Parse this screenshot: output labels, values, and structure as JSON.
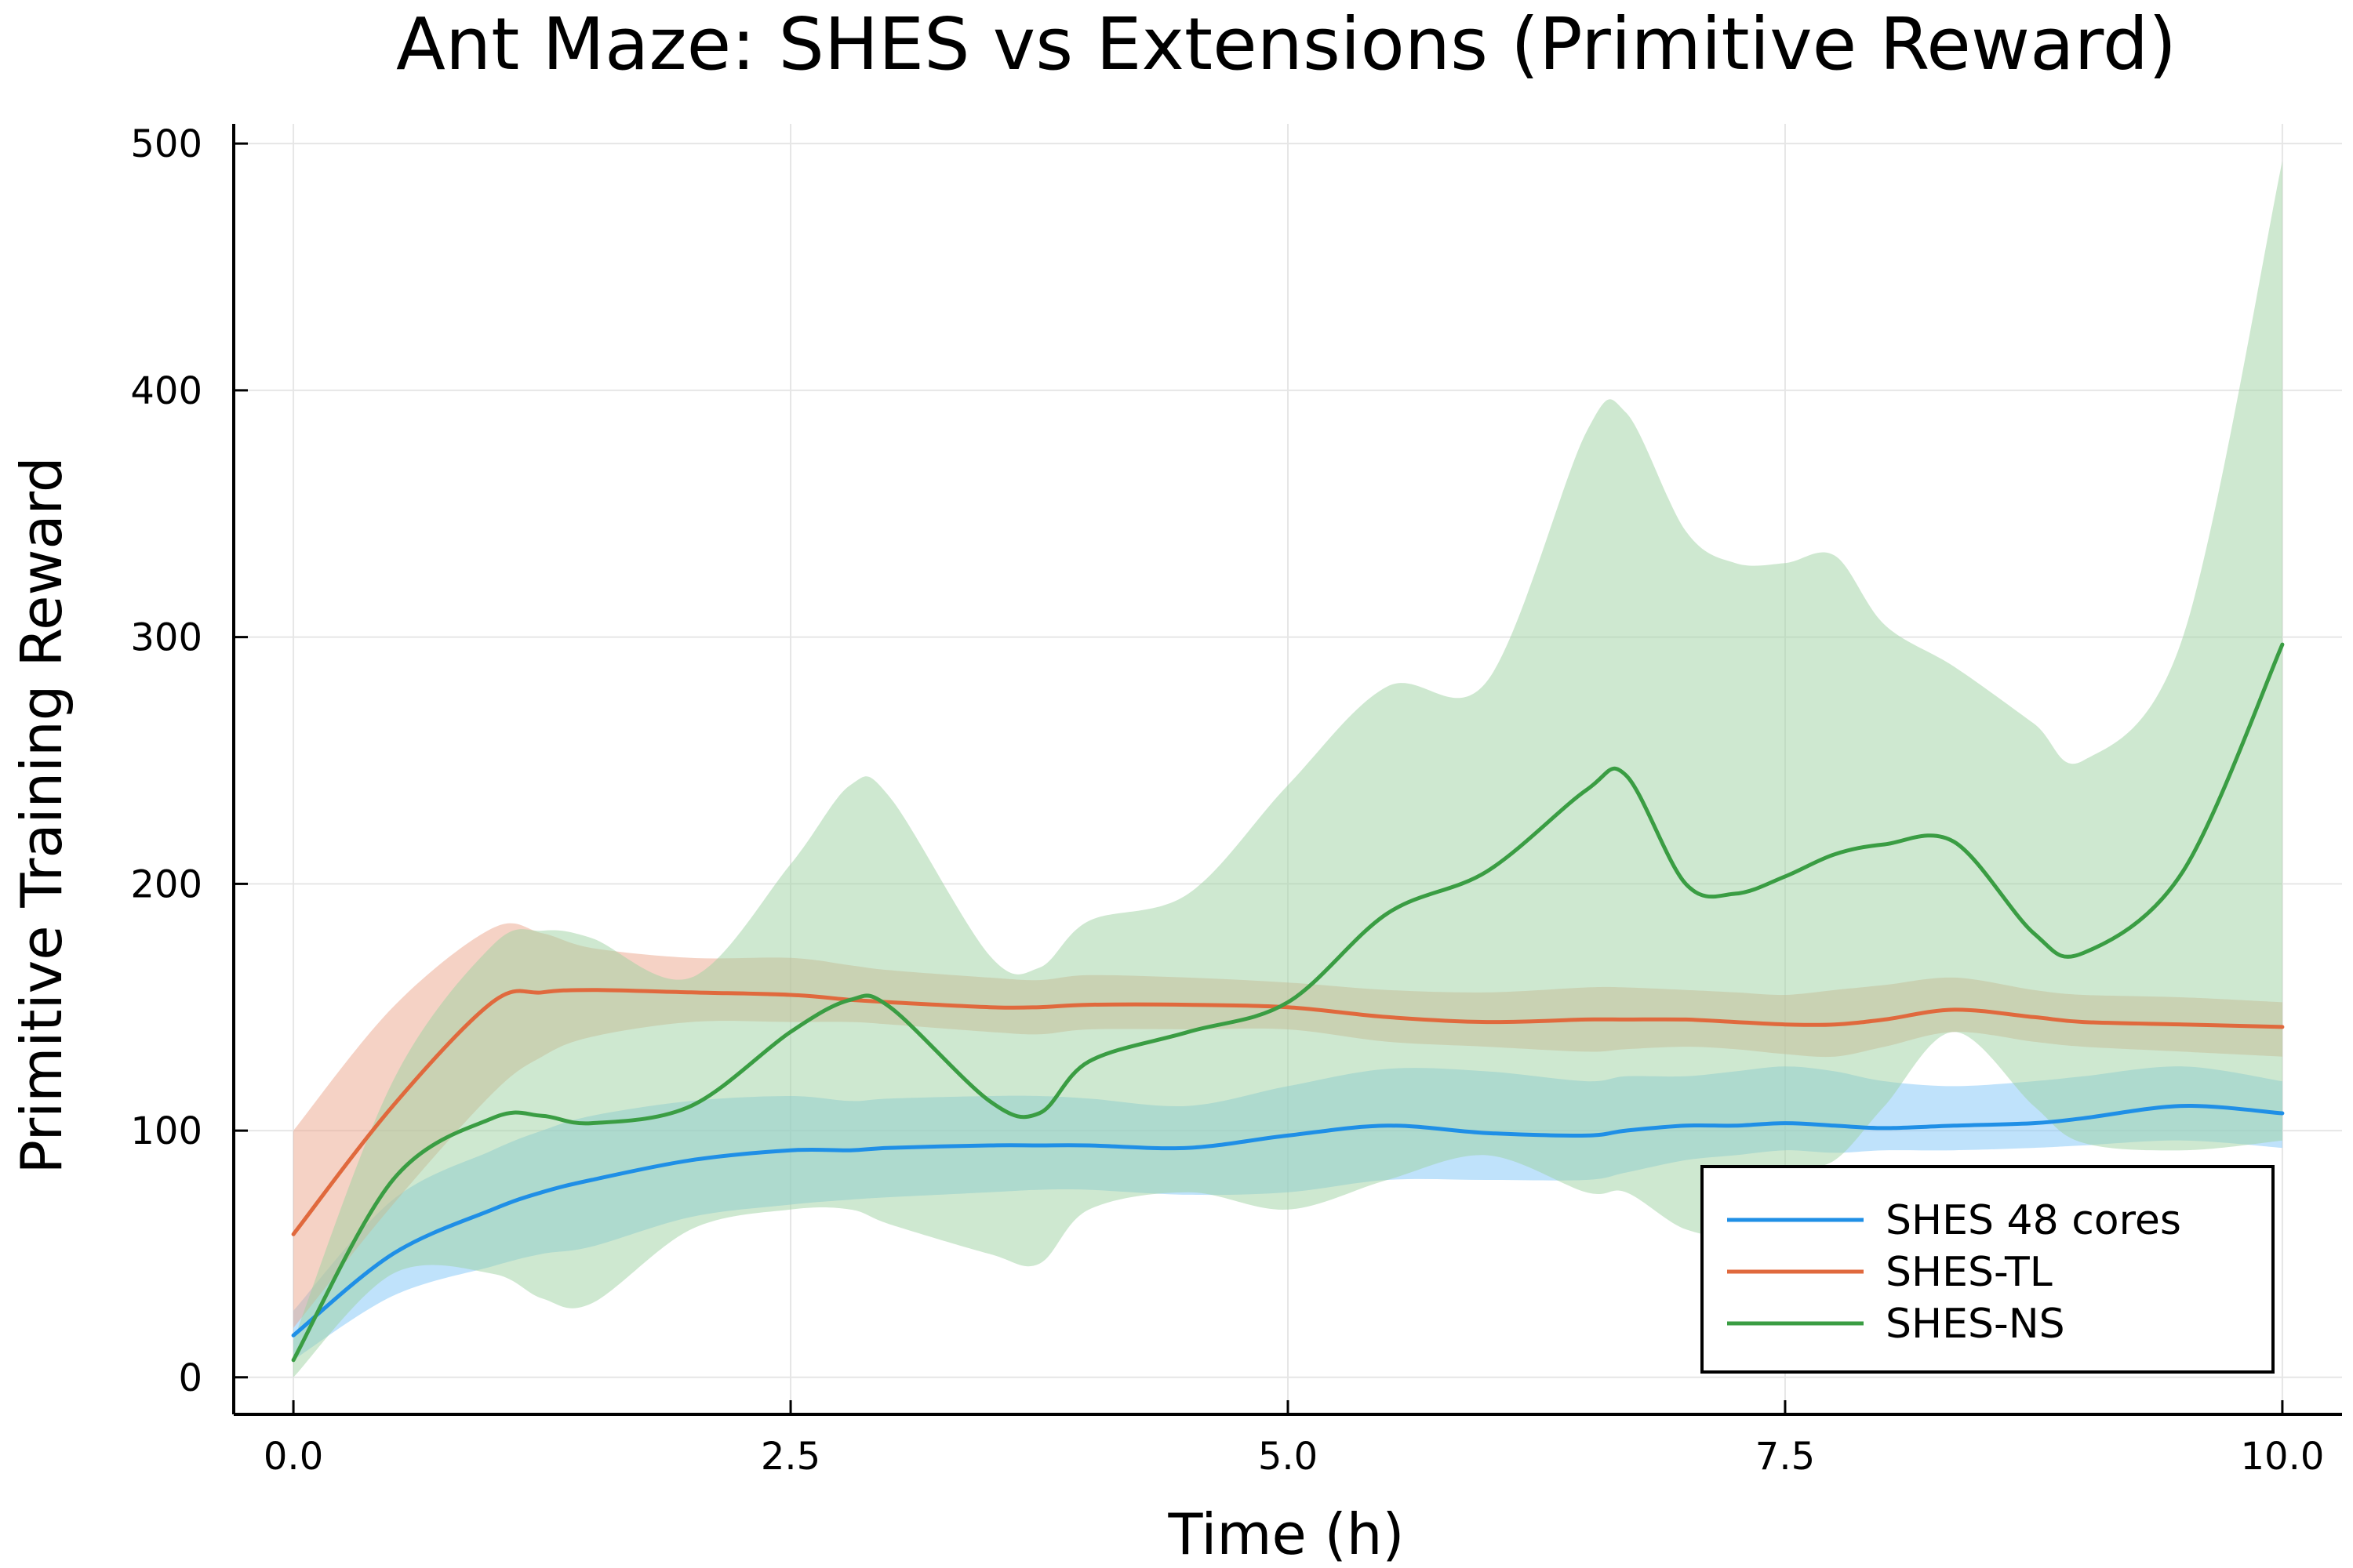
{
  "chart_data": {
    "type": "line",
    "title": "Ant Maze: SHES vs Extensions (Primitive Reward)",
    "xlabel": "Time (h)",
    "ylabel": "Primitive Training Reward",
    "xlim": [
      -0.3,
      10.3
    ],
    "ylim": [
      -15,
      508
    ],
    "x_ticks": [
      0.0,
      2.5,
      5.0,
      7.5,
      10.0
    ],
    "x_tick_labels": [
      "0.0",
      "2.5",
      "5.0",
      "7.5",
      "10.0"
    ],
    "y_ticks": [
      0,
      100,
      200,
      300,
      400,
      500
    ],
    "y_tick_labels": [
      "0",
      "100",
      "200",
      "300",
      "400",
      "500"
    ],
    "grid": true,
    "legend_position": "bottom-right",
    "x": [
      0.0,
      0.5,
      1.0,
      1.25,
      1.5,
      2.0,
      2.5,
      2.8,
      3.0,
      3.5,
      3.75,
      4.0,
      4.5,
      5.0,
      5.5,
      6.0,
      6.5,
      6.7,
      7.0,
      7.25,
      7.5,
      7.75,
      8.0,
      8.35,
      8.75,
      9.0,
      9.5,
      10.0
    ],
    "series": [
      {
        "name": "SHES 48 cores",
        "color": "#1f8fe6",
        "band_color": "#7fc6f7",
        "values": [
          17,
          50,
          68,
          75,
          80,
          88,
          92,
          92,
          93,
          94,
          94,
          94,
          93,
          98,
          102,
          99,
          98,
          100,
          102,
          102,
          103,
          102,
          101,
          102,
          103,
          105,
          110,
          107
        ],
        "lower": [
          7,
          33,
          45,
          50,
          53,
          65,
          70,
          72,
          73,
          75,
          76,
          76,
          74,
          75,
          80,
          80,
          80,
          83,
          88,
          90,
          92,
          91,
          92,
          92,
          93,
          94,
          96,
          93
        ],
        "upper": [
          27,
          72,
          92,
          100,
          106,
          112,
          114,
          112,
          113,
          114,
          114,
          113,
          110,
          118,
          125,
          124,
          120,
          122,
          122,
          124,
          126,
          124,
          120,
          118,
          120,
          122,
          126,
          120
        ]
      },
      {
        "name": "SHES-TL",
        "color": "#e0693d",
        "band_color": "#eba58c",
        "values": [
          58,
          110,
          152,
          156,
          157,
          156,
          155,
          153,
          152,
          150,
          150,
          151,
          151,
          150,
          146,
          144,
          145,
          145,
          145,
          144,
          143,
          143,
          145,
          149,
          146,
          144,
          143,
          142
        ],
        "lower": [
          20,
          70,
          115,
          130,
          138,
          144,
          144,
          144,
          143,
          140,
          139,
          141,
          141,
          141,
          136,
          134,
          132,
          133,
          134,
          133,
          131,
          130,
          134,
          140,
          136,
          134,
          132,
          130
        ],
        "upper": [
          100,
          150,
          182,
          180,
          174,
          170,
          170,
          167,
          165,
          162,
          161,
          163,
          162,
          160,
          157,
          156,
          158,
          158,
          157,
          156,
          155,
          157,
          159,
          162,
          157,
          155,
          154,
          152
        ]
      },
      {
        "name": "SHES-NS",
        "color": "#3a9d43",
        "band_color": "#9dd2a1",
        "values": [
          7,
          80,
          105,
          106,
          103,
          110,
          140,
          153,
          150,
          112,
          107,
          128,
          140,
          152,
          188,
          205,
          238,
          244,
          200,
          196,
          203,
          212,
          216,
          217,
          180,
          172,
          205,
          297
        ],
        "lower": [
          0,
          42,
          42,
          32,
          30,
          60,
          68,
          68,
          62,
          50,
          46,
          68,
          75,
          68,
          80,
          90,
          75,
          75,
          60,
          60,
          82,
          88,
          110,
          140,
          110,
          95,
          92,
          96
        ],
        "upper": [
          15,
          120,
          175,
          181,
          178,
          162,
          208,
          240,
          235,
          171,
          166,
          185,
          196,
          240,
          280,
          282,
          383,
          391,
          343,
          330,
          330,
          333,
          305,
          288,
          265,
          250,
          300,
          493
        ]
      }
    ]
  }
}
